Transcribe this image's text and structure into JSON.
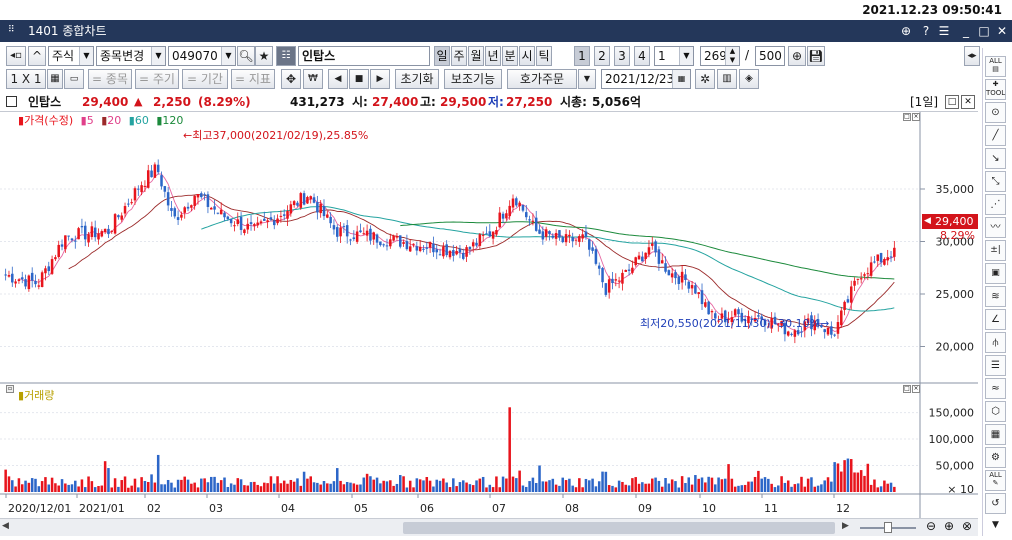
{
  "clock": "2021.12.23 09:50:41",
  "window": {
    "title": "1401 종합차트",
    "controls": [
      "⊕",
      "?",
      "☰",
      "_",
      "□",
      "✕"
    ]
  },
  "toolbar1": {
    "market": "주식",
    "stock_change": "종목변경",
    "code": "049070",
    "stock_name": "인탑스",
    "periods": [
      "일",
      "주",
      "월",
      "년",
      "분",
      "시",
      "틱"
    ],
    "period_nums": [
      "1",
      "2",
      "3",
      "4"
    ],
    "interval": "1",
    "count": "269",
    "slash": "/",
    "max_count": "500"
  },
  "toolbar2": {
    "layout": "1 X 1",
    "btn_stock": "= 종목",
    "btn_cycle": "= 주기",
    "btn_period": "= 기간",
    "btn_index": "= 지표",
    "btn_reset": "초기화",
    "btn_aux": "보조기능",
    "btn_order": "호가주문",
    "date": "2021/12/23"
  },
  "info": {
    "name": "인탑스",
    "price": "29,400",
    "change_sign": "▲",
    "change": "2,250",
    "rate": "(8.29%)",
    "volume": "431,273",
    "open_label": "시:",
    "open": "27,400",
    "high_label": "고:",
    "high": "29,500",
    "low_label": "저:",
    "low": "27,250",
    "mcap_label": "시총:",
    "mcap": "5,056억",
    "unit": "[1일]"
  },
  "price_legend": {
    "label": "가격(수정)",
    "ma5": "5",
    "ma20": "20",
    "ma60": "60",
    "ma120": "120"
  },
  "annotations": {
    "high": "←최고37,000(2021/02/19),25.85%",
    "low": "최저20,550(2021/11/30),-30.10%→"
  },
  "price_axis": [
    "35,000",
    "30,000",
    "25,000",
    "20,000"
  ],
  "current_tag": {
    "price": "29,400",
    "rate": "8.29%"
  },
  "volume_legend": "거래량",
  "volume_axis": [
    "150,000",
    "100,000",
    "50,000",
    "× 10"
  ],
  "x_axis": [
    "2020/12/01",
    "2021/01",
    "02",
    "03",
    "04",
    "05",
    "06",
    "07",
    "08",
    "09",
    "10",
    "11",
    "12"
  ],
  "colors": {
    "up": "#e8141c",
    "down": "#2c66c8",
    "ma5": "#e0408a",
    "ma20": "#9b2a2a",
    "ma60": "#24a3a0",
    "ma120": "#1c8a3c",
    "title_bar": "#24375a"
  },
  "chart_data": {
    "type": "candlestick",
    "period": "daily",
    "date_range": [
      "2020/12/01",
      "2021/12/23"
    ],
    "price_range": [
      17000,
      41000
    ],
    "key_points": [
      {
        "label": "최고",
        "date": "2021/02/19",
        "price": 37000
      },
      {
        "label": "최저",
        "date": "2021/11/30",
        "price": 20550
      },
      {
        "label": "current",
        "date": "2021/12/23",
        "price": 29400
      }
    ],
    "monthly_close_approx": [
      {
        "month": "2020/12",
        "close": 26800
      },
      {
        "month": "2021/01",
        "close": 30500
      },
      {
        "month": "2021/02",
        "close": 34500
      },
      {
        "month": "2021/03",
        "close": 33000
      },
      {
        "month": "2021/04",
        "close": 31500
      },
      {
        "month": "2021/05",
        "close": 30000
      },
      {
        "month": "2021/06",
        "close": 29000
      },
      {
        "month": "2021/07",
        "close": 31500
      },
      {
        "month": "2021/08",
        "close": 26000
      },
      {
        "month": "2021/09",
        "close": 27500
      },
      {
        "month": "2021/10",
        "close": 23500
      },
      {
        "month": "2021/11",
        "close": 21000
      },
      {
        "month": "2021/12",
        "close": 29400
      }
    ],
    "volume_peak": 160000
  }
}
